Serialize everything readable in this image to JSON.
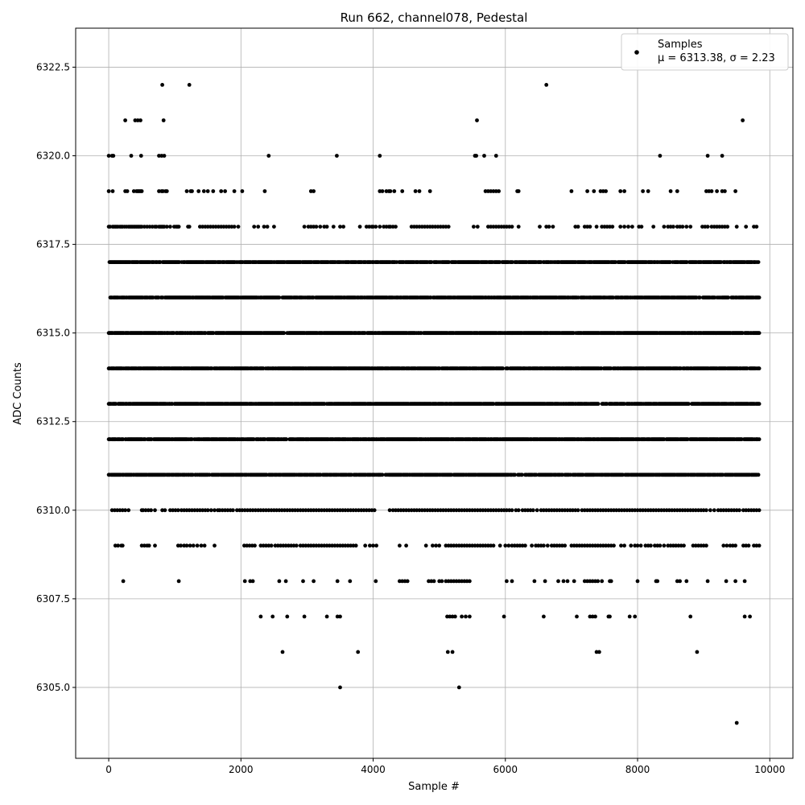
{
  "chart_data": {
    "type": "scatter",
    "title": "Run 662, channel078, Pedestal",
    "xlabel": "Sample #",
    "ylabel": "ADC Counts",
    "xlim": [
      -500,
      10350
    ],
    "ylim": [
      6303.0,
      6323.6
    ],
    "xticks": [
      0,
      2000,
      4000,
      6000,
      8000,
      10000
    ],
    "yticks": [
      6305.0,
      6307.5,
      6310.0,
      6312.5,
      6315.0,
      6317.5,
      6320.0,
      6322.5
    ],
    "xtick_labels": [
      "0",
      "2000",
      "4000",
      "6000",
      "8000",
      "10000"
    ],
    "ytick_labels": [
      "6305.0",
      "6307.5",
      "6310.0",
      "6312.5",
      "6315.0",
      "6317.5",
      "6320.0",
      "6322.5"
    ],
    "grid": true,
    "legend": {
      "position": "top-right",
      "entries": [
        {
          "name": "Samples",
          "stat": "μ = 6313.38, σ = 2.23",
          "color": "#000000"
        }
      ]
    },
    "series": [
      {
        "name": "Samples",
        "color": "#000000",
        "marker": "circle",
        "n_samples": 9850,
        "mean": 6313.38,
        "std": 2.23,
        "dense_levels": [
          6311,
          6312,
          6313,
          6314,
          6315,
          6316,
          6317
        ],
        "sparse_levels": [
          {
            "y": 6310,
            "x": [
              50,
              90,
              130,
              170,
              210,
              250,
              300,
              500,
              520,
              560,
              600,
              640,
              700,
              810,
              850,
              930,
              970,
              1010,
              1050,
              1100,
              1140,
              1180,
              1220,
              1260,
              1300,
              1340,
              1380,
              1420,
              1460,
              1500,
              1550,
              1600,
              1650,
              1680,
              1720,
              1760,
              1800,
              1840,
              1880,
              1940,
              1980,
              2020,
              2060,
              2100,
              2140,
              2180,
              2220,
              2260,
              2300,
              2340,
              2380,
              2420,
              2460,
              2500,
              2540,
              2580,
              2620,
              2660,
              2700,
              2740,
              2780,
              2820,
              2860,
              2900,
              2940,
              2980,
              3020,
              3060,
              3100,
              3140,
              3180,
              3220,
              3260,
              3300,
              3340,
              3380,
              3420,
              3460,
              3500,
              3540,
              3580,
              3620,
              3660,
              3700,
              3740,
              3780,
              3820,
              3860,
              3900,
              3940,
              3980,
              4020,
              4250,
              4300,
              4340,
              4380,
              4420,
              4460,
              4500,
              4540,
              4580,
              4620,
              4660,
              4700,
              4740,
              4780,
              4820,
              4860,
              4900,
              4940,
              4980,
              5020,
              5060,
              5100,
              5140,
              5180,
              5220,
              5260,
              5300,
              5340,
              5380,
              5420,
              5460,
              5500,
              5540,
              5580,
              5620,
              5660,
              5700,
              5740,
              5780,
              5820,
              5860,
              5900,
              5940,
              5980,
              6020,
              6060,
              6100,
              6160,
              6200,
              6260,
              6300,
              6340,
              6380,
              6420,
              6480,
              6540,
              6580,
              6620,
              6660,
              6700,
              6740,
              6780,
              6820,
              6860,
              6900,
              6940,
              6980,
              7020,
              7060,
              7100,
              7160,
              7200,
              7240,
              7280,
              7320,
              7360,
              7400,
              7440,
              7480,
              7520,
              7560,
              7600,
              7640,
              7680,
              7720,
              7760,
              7800,
              7840,
              7880,
              7920,
              7960,
              8000,
              8040,
              8080,
              8120,
              8160,
              8200,
              8240,
              8280,
              8320,
              8360,
              8400,
              8440,
              8480,
              8520,
              8560,
              8600,
              8640,
              8680,
              8720,
              8760,
              8800,
              8840,
              8880,
              8920,
              8960,
              9000,
              9040,
              9100,
              9160,
              9220,
              9260,
              9300,
              9340,
              9380,
              9420,
              9460,
              9500,
              9540,
              9600,
              9640,
              9680,
              9720,
              9760,
              9800,
              9840
            ]
          },
          {
            "y": 6309,
            "x": [
              100,
              140,
              190,
              210,
              500,
              540,
              580,
              610,
              700,
              1050,
              1090,
              1140,
              1180,
              1230,
              1280,
              1340,
              1400,
              1450,
              1600,
              2050,
              2090,
              2130,
              2170,
              2210,
              2300,
              2340,
              2380,
              2420,
              2460,
              2520,
              2560,
              2600,
              2640,
              2680,
              2720,
              2760,
              2800,
              2840,
              2900,
              2940,
              2980,
              3020,
              3060,
              3100,
              3140,
              3180,
              3220,
              3260,
              3300,
              3340,
              3380,
              3420,
              3460,
              3500,
              3540,
              3580,
              3620,
              3660,
              3700,
              3740,
              3880,
              3950,
              4000,
              4050,
              4400,
              4500,
              4800,
              4900,
              4950,
              5000,
              5100,
              5140,
              5180,
              5220,
              5260,
              5300,
              5340,
              5380,
              5420,
              5460,
              5500,
              5540,
              5580,
              5620,
              5660,
              5700,
              5740,
              5780,
              5820,
              5920,
              6000,
              6050,
              6100,
              6140,
              6180,
              6220,
              6260,
              6300,
              6400,
              6460,
              6500,
              6540,
              6580,
              6640,
              6700,
              6740,
              6780,
              6820,
              6860,
              6900,
              7000,
              7040,
              7080,
              7120,
              7160,
              7200,
              7240,
              7280,
              7320,
              7360,
              7400,
              7440,
              7480,
              7520,
              7560,
              7600,
              7640,
              7750,
              7800,
              7900,
              7960,
              8000,
              8050,
              8120,
              8160,
              8200,
              8260,
              8300,
              8340,
              8400,
              8460,
              8500,
              8540,
              8580,
              8620,
              8660,
              8700,
              8840,
              8880,
              8920,
              8960,
              9000,
              9040,
              9300,
              9350,
              9400,
              9440,
              9480,
              9600,
              9640,
              9680,
              9760,
              9800,
              9840
            ]
          },
          {
            "y": 6308,
            "x": [
              220,
              1060,
              2060,
              2140,
              2180,
              2580,
              2680,
              2940,
              3100,
              3460,
              3650,
              4040,
              4400,
              4440,
              4480,
              4520,
              4840,
              4880,
              4920,
              5000,
              5040,
              5100,
              5140,
              5180,
              5220,
              5260,
              5300,
              5340,
              5380,
              5420,
              5460,
              6020,
              6100,
              6440,
              6600,
              6800,
              6880,
              6940,
              7040,
              7200,
              7240,
              7280,
              7320,
              7360,
              7400,
              7460,
              7580,
              7600,
              8000,
              8280,
              8300,
              8600,
              8640,
              8740,
              9060,
              9340,
              9480,
              9620
            ]
          },
          {
            "y": 6307,
            "x": [
              2300,
              2480,
              2700,
              2960,
              3300,
              3460,
              3500,
              5120,
              5160,
              5200,
              5240,
              5340,
              5400,
              5460,
              5980,
              6580,
              7080,
              7280,
              7320,
              7360,
              7560,
              7580,
              7880,
              7960,
              8800,
              9620,
              9700
            ]
          },
          {
            "y": 6306,
            "x": [
              2630,
              3770,
              5130,
              5200,
              7380,
              7420,
              8900
            ]
          },
          {
            "y": 6305,
            "x": [
              3500,
              5300
            ]
          },
          {
            "y": 6304,
            "x": [
              9500
            ]
          },
          {
            "y": 6318,
            "x": [
              0,
              20,
              60,
              80,
              100,
              120,
              140,
              170,
              190,
              210,
              240,
              270,
              300,
              320,
              340,
              360,
              380,
              400,
              420,
              440,
              460,
              480,
              500,
              540,
              580,
              620,
              660,
              700,
              720,
              760,
              780,
              800,
              820,
              840,
              880,
              930,
              990,
              1020,
              1040,
              1060,
              1200,
              1220,
              1380,
              1420,
              1460,
              1500,
              1540,
              1580,
              1620,
              1660,
              1700,
              1740,
              1780,
              1820,
              1860,
              1900,
              1960,
              2200,
              2260,
              2350,
              2400,
              2500,
              2960,
              3020,
              3060,
              3100,
              3140,
              3200,
              3260,
              3300,
              3400,
              3500,
              3550,
              3800,
              3900,
              3940,
              3980,
              4000,
              4040,
              4100,
              4160,
              4200,
              4240,
              4260,
              4300,
              4340,
              4580,
              4620,
              4660,
              4700,
              4740,
              4780,
              4820,
              4860,
              4900,
              4940,
              4980,
              5020,
              5060,
              5100,
              5140,
              5520,
              5580,
              5740,
              5780,
              5820,
              5860,
              5900,
              5940,
              5980,
              6020,
              6060,
              6100,
              6200,
              6520,
              6620,
              6660,
              6720,
              7060,
              7100,
              7200,
              7240,
              7280,
              7380,
              7460,
              7500,
              7540,
              7580,
              7620,
              7740,
              7800,
              7860,
              7920,
              8020,
              8060,
              8240,
              8400,
              8460,
              8500,
              8540,
              8600,
              8640,
              8680,
              8740,
              8800,
              8980,
              9020,
              9060,
              9120,
              9160,
              9200,
              9240,
              9280,
              9320,
              9360,
              9500,
              9640,
              9760,
              9800
            ]
          },
          {
            "y": 6319,
            "x": [
              0,
              60,
              250,
              280,
              380,
              420,
              440,
              460,
              480,
              500,
              760,
              800,
              820,
              860,
              880,
              1180,
              1240,
              1260,
              1360,
              1440,
              1500,
              1580,
              1700,
              1760,
              1900,
              2020,
              2360,
              3060,
              3100,
              4100,
              4140,
              4200,
              4240,
              4260,
              4320,
              4440,
              4640,
              4700,
              4860,
              5700,
              5740,
              5780,
              5820,
              5860,
              5900,
              6180,
              6200,
              7000,
              7240,
              7340,
              7440,
              7480,
              7520,
              7740,
              7800,
              8080,
              8160,
              8500,
              8600,
              9040,
              9080,
              9120,
              9200,
              9280,
              9320,
              9480
            ]
          },
          {
            "y": 6320,
            "x": [
              0,
              50,
              70,
              340,
              490,
              760,
              800,
              840,
              2420,
              3450,
              4100,
              5540,
              5560,
              5680,
              5860,
              8340,
              9060,
              9280
            ]
          },
          {
            "y": 6321,
            "x": [
              250,
              400,
              440,
              480,
              830,
              5570,
              9590
            ]
          },
          {
            "y": 6322,
            "x": [
              810,
              1220,
              6620
            ]
          }
        ]
      }
    ]
  }
}
